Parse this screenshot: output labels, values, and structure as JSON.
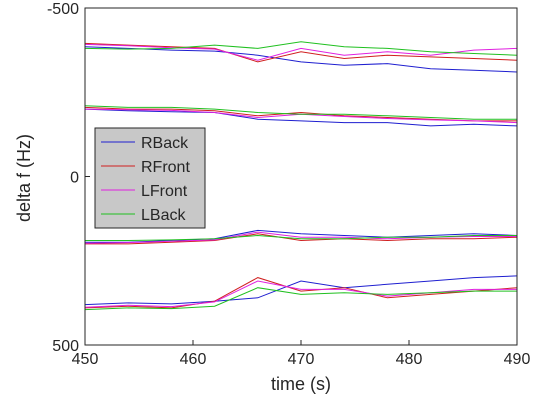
{
  "chart_data": {
    "type": "line",
    "xlabel": "time (s)",
    "ylabel": "delta f (Hz)",
    "xlim": [
      450,
      490
    ],
    "xticks": [
      450,
      460,
      470,
      480,
      490
    ],
    "ylim": [
      -500,
      500
    ],
    "yticks": [
      -500,
      0,
      500
    ],
    "y_reversed": true,
    "x": [
      450,
      454,
      458,
      462,
      466,
      470,
      474,
      478,
      482,
      486,
      490
    ],
    "legend": "center-left",
    "series": [
      {
        "name": "RBack",
        "color": "#1f1fd0",
        "traces": [
          [
            -385,
            -380,
            -375,
            -372,
            -360,
            -340,
            -330,
            -335,
            -320,
            -315,
            -310
          ],
          [
            -200,
            -195,
            -192,
            -190,
            -170,
            -165,
            -160,
            -160,
            -150,
            -155,
            -150
          ],
          [
            195,
            195,
            190,
            185,
            160,
            170,
            175,
            180,
            175,
            170,
            175
          ],
          [
            380,
            375,
            378,
            370,
            360,
            310,
            330,
            320,
            310,
            300,
            295
          ]
        ]
      },
      {
        "name": "RFront",
        "color": "#d01f1f",
        "traces": [
          [
            -395,
            -390,
            -385,
            -380,
            -340,
            -370,
            -350,
            -360,
            -355,
            -350,
            -345
          ],
          [
            -205,
            -200,
            -200,
            -195,
            -180,
            -190,
            -180,
            -175,
            -170,
            -165,
            -165
          ],
          [
            200,
            200,
            195,
            190,
            170,
            190,
            185,
            190,
            185,
            185,
            180
          ],
          [
            390,
            385,
            390,
            370,
            300,
            340,
            330,
            360,
            350,
            340,
            330
          ]
        ]
      },
      {
        "name": "LFront",
        "color": "#e020e0",
        "traces": [
          [
            -392,
            -388,
            -382,
            -378,
            -345,
            -380,
            -360,
            -370,
            -360,
            -375,
            -380
          ],
          [
            -200,
            -198,
            -196,
            -190,
            -175,
            -185,
            -178,
            -172,
            -168,
            -165,
            -160
          ],
          [
            198,
            196,
            192,
            188,
            165,
            180,
            180,
            185,
            180,
            178,
            178
          ],
          [
            388,
            382,
            386,
            372,
            310,
            335,
            335,
            355,
            345,
            335,
            335
          ]
        ]
      },
      {
        "name": "LBack",
        "color": "#20c020",
        "traces": [
          [
            -380,
            -378,
            -380,
            -390,
            -380,
            -400,
            -385,
            -380,
            -370,
            -365,
            -360
          ],
          [
            -210,
            -205,
            -205,
            -200,
            -190,
            -185,
            -185,
            -180,
            -175,
            -170,
            -170
          ],
          [
            190,
            190,
            188,
            185,
            175,
            185,
            185,
            180,
            180,
            175,
            175
          ],
          [
            395,
            390,
            392,
            385,
            330,
            350,
            345,
            350,
            345,
            340,
            340
          ]
        ]
      }
    ]
  }
}
